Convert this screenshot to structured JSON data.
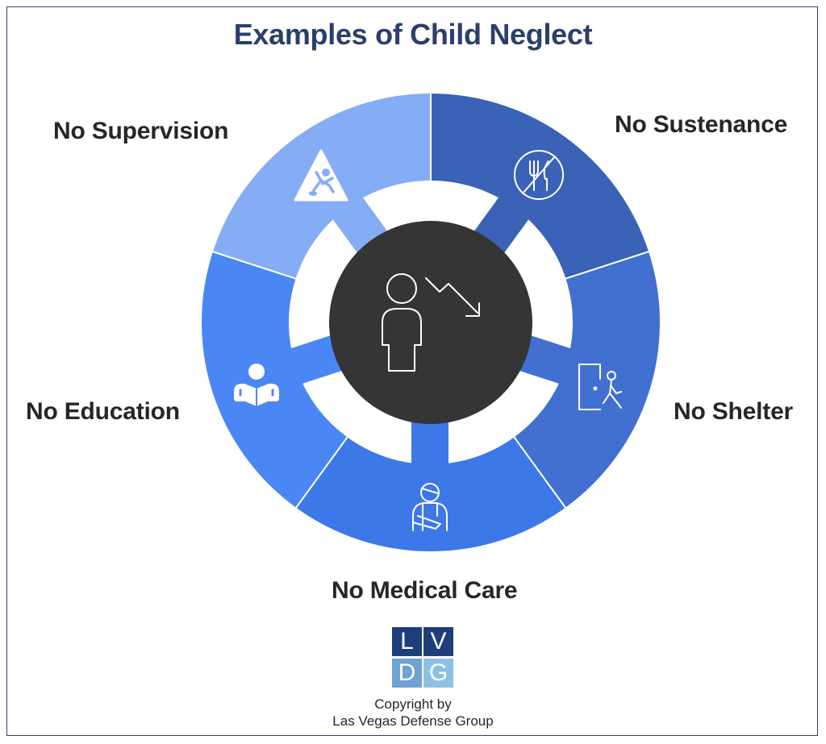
{
  "title": "Examples of Child Neglect",
  "segments": {
    "supervision": {
      "label": "No Supervision",
      "icon": "child-falling-warning-icon",
      "color": "#85adf6"
    },
    "sustenance": {
      "label": "No Sustenance",
      "icon": "no-food-icon",
      "color": "#3a62b6"
    },
    "shelter": {
      "label": "No Shelter",
      "icon": "person-leaving-door-icon",
      "color": "#4170d1"
    },
    "medical": {
      "label": "No Medical Care",
      "icon": "injured-person-icon",
      "color": "#3d78e9"
    },
    "education": {
      "label": "No Education",
      "icon": "reading-person-icon",
      "color": "#4a87f5"
    }
  },
  "center": {
    "icon": "person-declining-arrow-icon",
    "color": "#353535"
  },
  "logo": {
    "letters": [
      "L",
      "V",
      "D",
      "G"
    ]
  },
  "copyright": {
    "line1": "Copyright by",
    "line2": "Las Vegas Defense Group"
  }
}
